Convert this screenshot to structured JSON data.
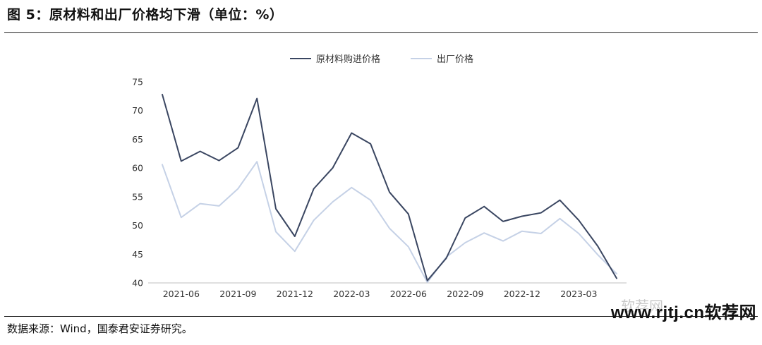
{
  "figure": {
    "title": "图 5：原材料和出厂价格均下滑（单位：%）",
    "source": "数据来源：Wind，国泰君安证券研究。",
    "watermark": "www.rjtj.cn软荐网",
    "watermark_faint": "软荐网"
  },
  "chart_data": {
    "type": "line",
    "title": "",
    "xlabel": "",
    "ylabel": "",
    "ylim": [
      40,
      75
    ],
    "yticks": [
      40,
      45,
      50,
      55,
      60,
      65,
      70,
      75
    ],
    "x": [
      "2021-05",
      "2021-06",
      "2021-07",
      "2021-08",
      "2021-09",
      "2021-10",
      "2021-11",
      "2021-12",
      "2022-01",
      "2022-02",
      "2022-03",
      "2022-04",
      "2022-05",
      "2022-06",
      "2022-07",
      "2022-08",
      "2022-09",
      "2022-10",
      "2022-11",
      "2022-12",
      "2023-01",
      "2023-02",
      "2023-03",
      "2023-04",
      "2023-05"
    ],
    "xtick_labels": [
      "2021-06",
      "2021-09",
      "2021-12",
      "2022-03",
      "2022-06",
      "2022-09",
      "2022-12",
      "2023-03"
    ],
    "legend_position": "top-center",
    "series": [
      {
        "name": "原材料购进价格",
        "color": "#3a4661",
        "values": [
          72.8,
          61.2,
          62.9,
          61.3,
          63.5,
          72.1,
          52.9,
          48.1,
          56.4,
          60.0,
          66.1,
          64.2,
          55.8,
          52.0,
          40.4,
          44.3,
          51.3,
          53.3,
          50.7,
          51.6,
          52.2,
          54.4,
          50.9,
          46.4,
          40.8
        ]
      },
      {
        "name": "出厂价格",
        "color": "#c5d1e6",
        "values": [
          60.6,
          51.4,
          53.8,
          53.4,
          56.4,
          61.1,
          48.9,
          45.5,
          50.9,
          54.1,
          56.6,
          54.4,
          49.5,
          46.3,
          40.1,
          44.5,
          47.0,
          48.7,
          47.3,
          49.0,
          48.6,
          51.2,
          48.6,
          44.9,
          41.6
        ]
      }
    ]
  }
}
